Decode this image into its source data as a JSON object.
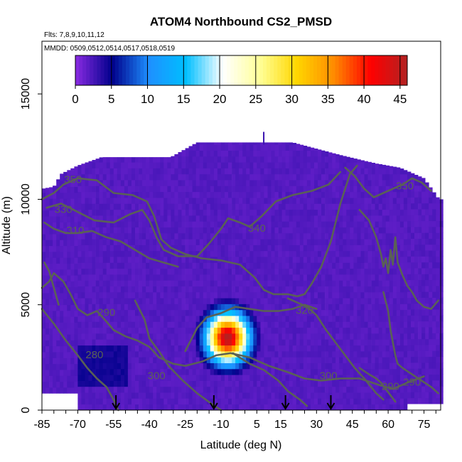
{
  "chart_data": {
    "type": "heatmap",
    "title": "ATOM4 Northbound CS2_PMSD",
    "subtitle_flights": "Flts: 7,8,9,10,11,12",
    "subtitle_dates": "MMDD: 0509,0512,0514,0517,0518,0519",
    "xlabel": "Latitude (deg N)",
    "ylabel": "Altitude (m)",
    "xlim": [
      -85,
      82
    ],
    "ylim": [
      0,
      17500
    ],
    "x_ticks": [
      -85,
      -70,
      -55,
      -40,
      -25,
      -10,
      5,
      15,
      30,
      45,
      60,
      75
    ],
    "y_ticks": [
      0,
      5000,
      10000,
      15000
    ],
    "colorbar": {
      "range": [
        0,
        46
      ],
      "ticks": [
        0,
        5,
        10,
        15,
        20,
        25,
        30,
        35,
        40,
        45
      ],
      "palette": [
        "#8a2be2",
        "#00008b",
        "#1e90ff",
        "#00bfff",
        "#ffffff",
        "#ffff99",
        "#ffd700",
        "#ff8c00",
        "#ff0000",
        "#b22222"
      ]
    },
    "background_value": 2,
    "hotspot": {
      "lat": -8,
      "alt": 3300,
      "peak": 46,
      "sigma_lat": 6,
      "sigma_alt": 800
    },
    "low_region": {
      "lat_range": [
        -70,
        -50
      ],
      "alt_range": [
        1000,
        2800
      ],
      "value": 4
    },
    "contours": [
      {
        "label": "350",
        "label_lat": -72,
        "label_alt": 10900
      },
      {
        "label": "330",
        "label_lat": -76,
        "label_alt": 9500
      },
      {
        "label": "310",
        "label_lat": -71,
        "label_alt": 8500
      },
      {
        "label": "340",
        "label_lat": 5,
        "label_alt": 8600
      },
      {
        "label": "320",
        "label_lat": 25,
        "label_alt": 4700
      },
      {
        "label": "290",
        "label_lat": -58,
        "label_alt": 4600
      },
      {
        "label": "280",
        "label_lat": -63,
        "label_alt": 2600
      },
      {
        "label": "300",
        "label_lat": -37,
        "label_alt": 1600
      },
      {
        "label": "300",
        "label_lat": 35,
        "label_alt": 1600
      },
      {
        "label": "290",
        "label_lat": 61,
        "label_alt": 1100
      },
      {
        "label": "350",
        "label_lat": 67,
        "label_alt": 10600
      },
      {
        "label": "290",
        "label_lat": 70,
        "label_alt": 1300
      }
    ],
    "profile_markers_lat": [
      -54,
      -13,
      17,
      36
    ]
  }
}
